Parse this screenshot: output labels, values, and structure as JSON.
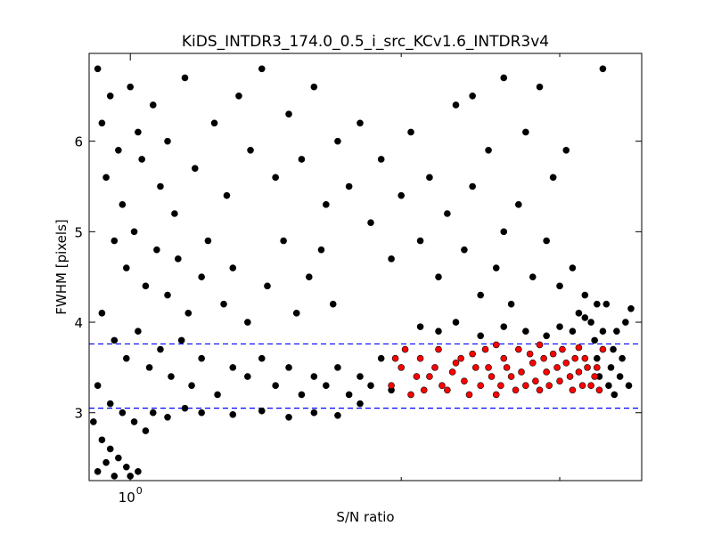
{
  "chart_data": {
    "type": "scatter",
    "title": "KiDS_INTDR3_174.0_0.5_i_src_KCv1.6_INTDR3v4",
    "xlabel": "S/N ratio",
    "ylabel": "FWHM [pixels]",
    "xscale": "log",
    "xlim": [
      0.9,
      3.7
    ],
    "ylim": [
      2.25,
      6.97
    ],
    "x_ticks": [
      {
        "value": 1,
        "label": "10",
        "exponent": "0"
      }
    ],
    "x_minor_ticks": [
      2,
      3
    ],
    "y_ticks": [
      {
        "value": 3,
        "label": "3"
      },
      {
        "value": 4,
        "label": "4"
      },
      {
        "value": 5,
        "label": "5"
      },
      {
        "value": 6,
        "label": "6"
      }
    ],
    "grid": false,
    "legend": "none",
    "reference_lines": [
      {
        "y": 3.76,
        "style": "dashed",
        "color": "#0000ff"
      },
      {
        "y": 3.05,
        "style": "dashed",
        "color": "#0000ff"
      }
    ],
    "series": [
      {
        "color": "#000000",
        "marker_edge": "#000000",
        "points": [
          [
            0.92,
            6.8
          ],
          [
            0.95,
            6.5
          ],
          [
            0.93,
            6.2
          ],
          [
            0.97,
            5.9
          ],
          [
            1.0,
            6.6
          ],
          [
            1.02,
            6.1
          ],
          [
            0.94,
            5.6
          ],
          [
            0.98,
            5.3
          ],
          [
            1.03,
            5.8
          ],
          [
            1.06,
            6.4
          ],
          [
            1.08,
            5.5
          ],
          [
            1.1,
            6.0
          ],
          [
            1.12,
            5.2
          ],
          [
            1.15,
            6.7
          ],
          [
            1.18,
            5.7
          ],
          [
            0.96,
            4.9
          ],
          [
            0.99,
            4.6
          ],
          [
            1.01,
            5.0
          ],
          [
            1.04,
            4.4
          ],
          [
            1.07,
            4.8
          ],
          [
            1.1,
            4.3
          ],
          [
            1.13,
            4.7
          ],
          [
            1.16,
            4.1
          ],
          [
            1.2,
            4.5
          ],
          [
            1.24,
            6.2
          ],
          [
            1.28,
            5.4
          ],
          [
            1.32,
            6.5
          ],
          [
            1.36,
            5.9
          ],
          [
            1.4,
            6.8
          ],
          [
            1.45,
            5.6
          ],
          [
            1.5,
            6.3
          ],
          [
            1.55,
            5.8
          ],
          [
            1.6,
            6.6
          ],
          [
            1.65,
            5.3
          ],
          [
            1.7,
            6.0
          ],
          [
            1.22,
            4.9
          ],
          [
            1.27,
            4.2
          ],
          [
            1.3,
            4.6
          ],
          [
            1.35,
            4.0
          ],
          [
            1.42,
            4.4
          ],
          [
            1.48,
            4.9
          ],
          [
            1.53,
            4.1
          ],
          [
            1.58,
            4.5
          ],
          [
            1.63,
            4.8
          ],
          [
            1.68,
            4.2
          ],
          [
            1.75,
            5.5
          ],
          [
            1.8,
            6.2
          ],
          [
            1.85,
            5.1
          ],
          [
            1.9,
            5.8
          ],
          [
            1.95,
            4.7
          ],
          [
            2.0,
            5.4
          ],
          [
            2.05,
            6.1
          ],
          [
            2.1,
            4.9
          ],
          [
            2.15,
            5.6
          ],
          [
            2.2,
            4.5
          ],
          [
            2.25,
            5.2
          ],
          [
            2.3,
            6.4
          ],
          [
            2.35,
            4.8
          ],
          [
            2.4,
            5.5
          ],
          [
            2.45,
            4.3
          ],
          [
            2.5,
            5.9
          ],
          [
            2.55,
            4.6
          ],
          [
            2.6,
            5.0
          ],
          [
            2.65,
            4.2
          ],
          [
            2.7,
            5.3
          ],
          [
            2.8,
            4.5
          ],
          [
            2.9,
            4.9
          ],
          [
            3.0,
            4.4
          ],
          [
            3.1,
            4.6
          ],
          [
            3.15,
            4.1
          ],
          [
            3.2,
            4.3
          ],
          [
            3.25,
            4.0
          ],
          [
            3.3,
            4.2
          ],
          [
            2.75,
            6.1
          ],
          [
            2.95,
            5.6
          ],
          [
            3.05,
            5.9
          ],
          [
            2.85,
            6.6
          ],
          [
            3.35,
            6.8
          ],
          [
            2.6,
            6.7
          ],
          [
            2.4,
            6.5
          ],
          [
            0.93,
            4.1
          ],
          [
            0.96,
            3.8
          ],
          [
            0.99,
            3.6
          ],
          [
            1.02,
            3.9
          ],
          [
            1.05,
            3.5
          ],
          [
            1.08,
            3.7
          ],
          [
            1.11,
            3.4
          ],
          [
            1.14,
            3.8
          ],
          [
            1.17,
            3.3
          ],
          [
            1.2,
            3.6
          ],
          [
            1.25,
            3.2
          ],
          [
            1.3,
            3.5
          ],
          [
            1.35,
            3.4
          ],
          [
            1.4,
            3.6
          ],
          [
            1.45,
            3.3
          ],
          [
            1.5,
            3.5
          ],
          [
            1.55,
            3.2
          ],
          [
            1.6,
            3.4
          ],
          [
            1.65,
            3.3
          ],
          [
            1.7,
            3.5
          ],
          [
            1.75,
            3.2
          ],
          [
            1.8,
            3.4
          ],
          [
            1.85,
            3.3
          ],
          [
            1.9,
            3.6
          ],
          [
            1.95,
            3.25
          ],
          [
            0.92,
            3.3
          ],
          [
            0.95,
            3.1
          ],
          [
            0.98,
            3.0
          ],
          [
            1.01,
            2.9
          ],
          [
            1.04,
            2.8
          ],
          [
            0.91,
            2.9
          ],
          [
            0.93,
            2.7
          ],
          [
            0.95,
            2.6
          ],
          [
            0.97,
            2.5
          ],
          [
            0.99,
            2.4
          ],
          [
            0.92,
            2.35
          ],
          [
            0.94,
            2.45
          ],
          [
            1.0,
            2.3
          ],
          [
            1.02,
            2.35
          ],
          [
            0.96,
            2.3
          ],
          [
            1.06,
            3.0
          ],
          [
            1.1,
            2.95
          ],
          [
            1.15,
            3.05
          ],
          [
            1.2,
            3.0
          ],
          [
            1.3,
            2.98
          ],
          [
            1.4,
            3.02
          ],
          [
            1.5,
            2.95
          ],
          [
            1.6,
            3.0
          ],
          [
            1.7,
            2.97
          ],
          [
            1.8,
            3.1
          ],
          [
            3.4,
            3.3
          ],
          [
            3.42,
            3.5
          ],
          [
            3.44,
            3.7
          ],
          [
            3.45,
            3.2
          ],
          [
            3.47,
            3.9
          ],
          [
            3.5,
            3.4
          ],
          [
            3.52,
            3.6
          ],
          [
            3.55,
            4.0
          ],
          [
            3.6,
            4.15
          ],
          [
            3.58,
            3.3
          ],
          [
            3.35,
            3.9
          ],
          [
            3.38,
            4.2
          ],
          [
            3.32,
            3.4
          ],
          [
            3.3,
            3.6
          ],
          [
            3.28,
            3.8
          ],
          [
            2.2,
            3.9
          ],
          [
            2.3,
            4.0
          ],
          [
            2.45,
            3.85
          ],
          [
            2.6,
            3.95
          ],
          [
            2.75,
            3.9
          ],
          [
            2.9,
            3.85
          ],
          [
            3.0,
            3.95
          ],
          [
            3.1,
            3.9
          ],
          [
            3.2,
            4.05
          ],
          [
            2.1,
            3.95
          ]
        ]
      },
      {
        "color": "#ff0000",
        "marker_edge": "#000000",
        "points": [
          [
            1.95,
            3.3
          ],
          [
            2.0,
            3.5
          ],
          [
            2.05,
            3.2
          ],
          [
            2.1,
            3.6
          ],
          [
            2.15,
            3.4
          ],
          [
            2.2,
            3.7
          ],
          [
            2.25,
            3.25
          ],
          [
            2.3,
            3.55
          ],
          [
            2.35,
            3.35
          ],
          [
            2.4,
            3.65
          ],
          [
            2.45,
            3.3
          ],
          [
            2.5,
            3.5
          ],
          [
            2.55,
            3.2
          ],
          [
            2.6,
            3.6
          ],
          [
            2.65,
            3.4
          ],
          [
            2.7,
            3.7
          ],
          [
            2.75,
            3.3
          ],
          [
            2.8,
            3.55
          ],
          [
            2.85,
            3.25
          ],
          [
            2.9,
            3.45
          ],
          [
            2.95,
            3.65
          ],
          [
            3.0,
            3.35
          ],
          [
            3.05,
            3.55
          ],
          [
            3.1,
            3.25
          ],
          [
            3.15,
            3.45
          ],
          [
            3.2,
            3.6
          ],
          [
            3.25,
            3.3
          ],
          [
            3.3,
            3.5
          ],
          [
            3.35,
            3.7
          ],
          [
            1.97,
            3.6
          ],
          [
            2.02,
            3.7
          ],
          [
            2.08,
            3.4
          ],
          [
            2.12,
            3.25
          ],
          [
            2.18,
            3.5
          ],
          [
            2.22,
            3.3
          ],
          [
            2.28,
            3.45
          ],
          [
            2.33,
            3.6
          ],
          [
            2.38,
            3.2
          ],
          [
            2.42,
            3.5
          ],
          [
            2.48,
            3.7
          ],
          [
            2.52,
            3.4
          ],
          [
            2.58,
            3.3
          ],
          [
            2.62,
            3.5
          ],
          [
            2.68,
            3.25
          ],
          [
            2.72,
            3.45
          ],
          [
            2.78,
            3.65
          ],
          [
            2.82,
            3.35
          ],
          [
            2.88,
            3.6
          ],
          [
            2.92,
            3.3
          ],
          [
            2.98,
            3.5
          ],
          [
            3.02,
            3.7
          ],
          [
            3.08,
            3.4
          ],
          [
            3.12,
            3.6
          ],
          [
            3.18,
            3.3
          ],
          [
            3.22,
            3.5
          ],
          [
            3.28,
            3.4
          ],
          [
            3.32,
            3.25
          ],
          [
            2.55,
            3.75
          ],
          [
            2.85,
            3.75
          ],
          [
            3.15,
            3.72
          ]
        ]
      }
    ]
  }
}
